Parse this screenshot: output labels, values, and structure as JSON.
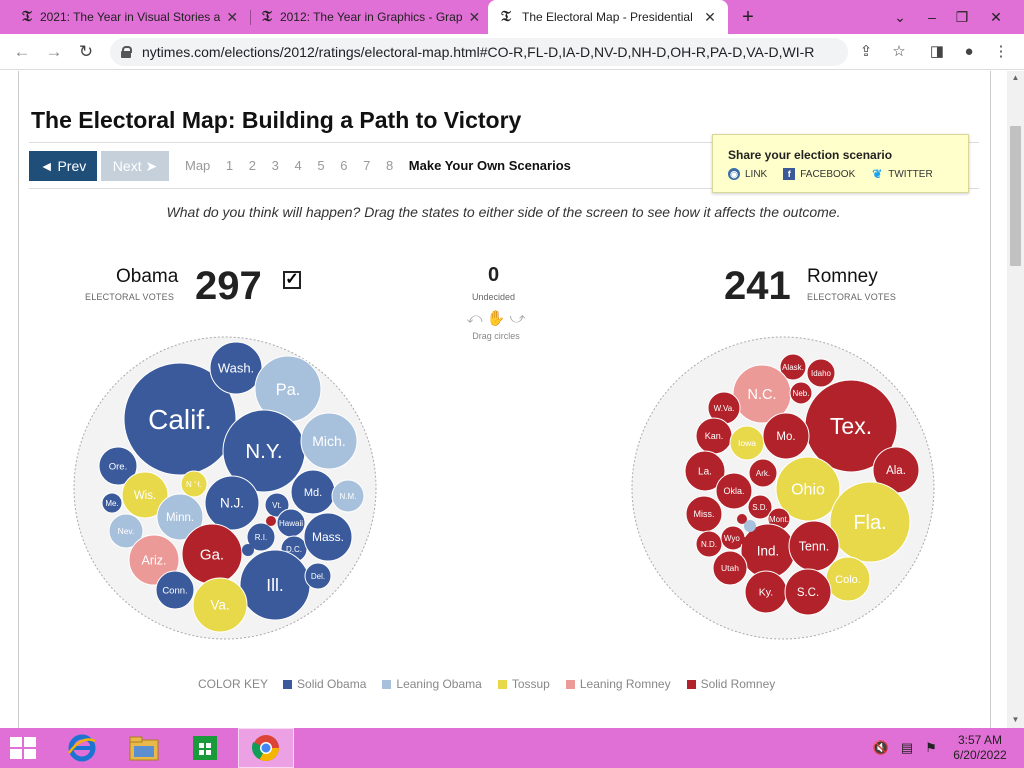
{
  "browser": {
    "tabs": [
      {
        "title": "2021: The Year in Visual Stories a",
        "active": false
      },
      {
        "title": "2012: The Year in Graphics - Grap",
        "active": false
      },
      {
        "title": "The Electoral Map - Presidential",
        "active": true
      }
    ],
    "url": "nytimes.com/elections/2012/ratings/electoral-map.html#CO-R,FL-D,IA-D,NV-D,NH-D,OH-R,PA-D,VA-D,WI-R"
  },
  "page": {
    "headline": "The Electoral Map: Building a Path to Victory",
    "prev_label": "◄ Prev",
    "next_label": "Next ➤",
    "steps": [
      "Map",
      "1",
      "2",
      "3",
      "4",
      "5",
      "6",
      "7",
      "8"
    ],
    "make_own": "Make Your Own Scenarios",
    "share": {
      "title": "Share your election scenario",
      "link": "LINK",
      "facebook": "FACEBOOK",
      "twitter": "TWITTER"
    },
    "instructions": "What do you think will happen? Drag the states to either side of the screen to see how it affects the outcome.",
    "obama": {
      "name": "Obama",
      "sub": "ELECTORAL VOTES",
      "votes": "297",
      "check": "✓"
    },
    "romney": {
      "name": "Romney",
      "sub": "ELECTORAL VOTES",
      "votes": "241"
    },
    "undecided": {
      "count": "0",
      "label": "Undecided",
      "drag_label": "Drag circles"
    },
    "colors": {
      "solid_obama": "#3a5a9c",
      "leaning_obama": "#a7c0dc",
      "tossup": "#e8d94a",
      "leaning_romney": "#ec9a98",
      "solid_romney": "#b2222a"
    },
    "color_key": {
      "title": "COLOR KEY",
      "items": [
        {
          "label": "Solid Obama",
          "color": "#3a5a9c"
        },
        {
          "label": "Leaning Obama",
          "color": "#a7c0dc"
        },
        {
          "label": "Tossup",
          "color": "#e8d94a"
        },
        {
          "label": "Leaning Romney",
          "color": "#ec9a98"
        },
        {
          "label": "Solid Romney",
          "color": "#b2222a"
        }
      ]
    },
    "obama_states": [
      {
        "name": "Calif.",
        "cat": "solid_obama"
      },
      {
        "name": "Wash.",
        "cat": "solid_obama"
      },
      {
        "name": "Pa.",
        "cat": "leaning_obama"
      },
      {
        "name": "N.Y.",
        "cat": "solid_obama"
      },
      {
        "name": "Mich.",
        "cat": "leaning_obama"
      },
      {
        "name": "Ore.",
        "cat": "solid_obama"
      },
      {
        "name": "Wis.",
        "cat": "tossup"
      },
      {
        "name": "N.H.",
        "cat": "tossup"
      },
      {
        "name": "Me.",
        "cat": "solid_obama"
      },
      {
        "name": "Minn.",
        "cat": "leaning_obama"
      },
      {
        "name": "N.J.",
        "cat": "solid_obama"
      },
      {
        "name": "Md.",
        "cat": "solid_obama"
      },
      {
        "name": "N.M.",
        "cat": "leaning_obama"
      },
      {
        "name": "Nev.",
        "cat": "leaning_obama"
      },
      {
        "name": "Vt.",
        "cat": "solid_obama"
      },
      {
        "name": "Hawaii",
        "cat": "solid_obama"
      },
      {
        "name": "Ariz.",
        "cat": "leaning_romney"
      },
      {
        "name": "Ga.",
        "cat": "solid_romney"
      },
      {
        "name": "R.I.",
        "cat": "solid_obama"
      },
      {
        "name": "D.C.",
        "cat": "solid_obama"
      },
      {
        "name": "Mass.",
        "cat": "solid_obama"
      },
      {
        "name": "Ill.",
        "cat": "solid_obama"
      },
      {
        "name": "Del.",
        "cat": "solid_obama"
      },
      {
        "name": "Conn.",
        "cat": "solid_obama"
      },
      {
        "name": "Va.",
        "cat": "tossup"
      }
    ],
    "romney_states": [
      {
        "name": "Alask.",
        "cat": "solid_romney"
      },
      {
        "name": "Idaho",
        "cat": "solid_romney"
      },
      {
        "name": "N.C.",
        "cat": "leaning_romney"
      },
      {
        "name": "Neb.",
        "cat": "solid_romney"
      },
      {
        "name": "W.Va.",
        "cat": "solid_romney"
      },
      {
        "name": "Tex.",
        "cat": "solid_romney"
      },
      {
        "name": "Kan.",
        "cat": "solid_romney"
      },
      {
        "name": "Iowa",
        "cat": "tossup"
      },
      {
        "name": "Mo.",
        "cat": "solid_romney"
      },
      {
        "name": "La.",
        "cat": "solid_romney"
      },
      {
        "name": "Ark.",
        "cat": "solid_romney"
      },
      {
        "name": "Ala.",
        "cat": "solid_romney"
      },
      {
        "name": "Ohio",
        "cat": "tossup"
      },
      {
        "name": "Okla.",
        "cat": "solid_romney"
      },
      {
        "name": "S.D.",
        "cat": "solid_romney"
      },
      {
        "name": "Miss.",
        "cat": "solid_romney"
      },
      {
        "name": "Mont.",
        "cat": "solid_romney"
      },
      {
        "name": "Fla.",
        "cat": "tossup"
      },
      {
        "name": "N.D.",
        "cat": "solid_romney"
      },
      {
        "name": "Wyo.",
        "cat": "solid_romney"
      },
      {
        "name": "Ind.",
        "cat": "solid_romney"
      },
      {
        "name": "Tenn.",
        "cat": "solid_romney"
      },
      {
        "name": "Utah",
        "cat": "solid_romney"
      },
      {
        "name": "Colo.",
        "cat": "tossup"
      },
      {
        "name": "Ky.",
        "cat": "solid_romney"
      },
      {
        "name": "S.C.",
        "cat": "solid_romney"
      }
    ]
  },
  "taskbar": {
    "time": "3:57 AM",
    "date": "6/20/2022"
  }
}
